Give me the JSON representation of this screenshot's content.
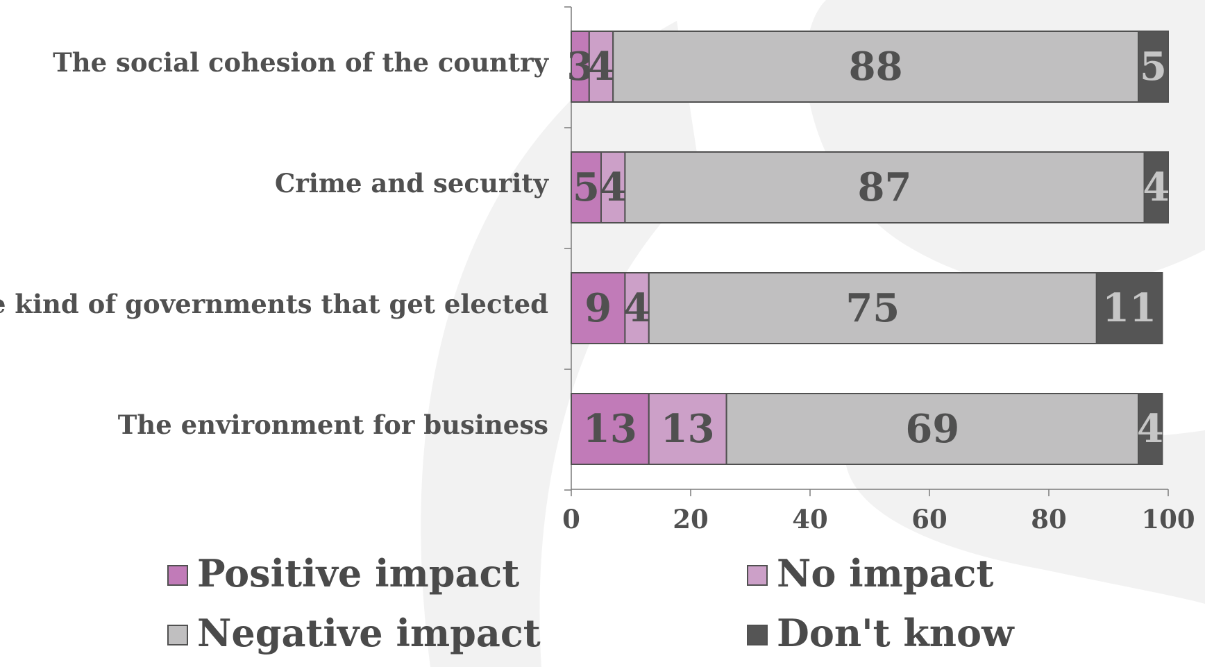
{
  "chart_data": {
    "type": "bar",
    "orientation": "horizontal",
    "stacked": true,
    "categories": [
      "The social cohesion of the country",
      "Crime and security",
      "The kind of governments that get elected",
      "The environment for business"
    ],
    "series": [
      {
        "name": "Positive impact",
        "color": "#c17bb8",
        "label_color": "#505050",
        "values": [
          3,
          5,
          9,
          13
        ]
      },
      {
        "name": "No impact",
        "color": "#cca0c8",
        "label_color": "#505050",
        "values": [
          4,
          4,
          4,
          13
        ]
      },
      {
        "name": "Negative impact",
        "color": "#c0bfc0",
        "label_color": "#505050",
        "values": [
          88,
          87,
          75,
          69
        ]
      },
      {
        "name": "Don't know",
        "color": "#555555",
        "label_color": "#c6c6c6",
        "values": [
          5,
          4,
          11,
          4
        ]
      }
    ],
    "xlim": [
      0,
      100
    ],
    "x_ticks": [
      "0",
      "20",
      "40",
      "60",
      "80",
      "100"
    ],
    "legend_position": "bottom",
    "grid": false,
    "background_watermark": "light grey swirl"
  }
}
